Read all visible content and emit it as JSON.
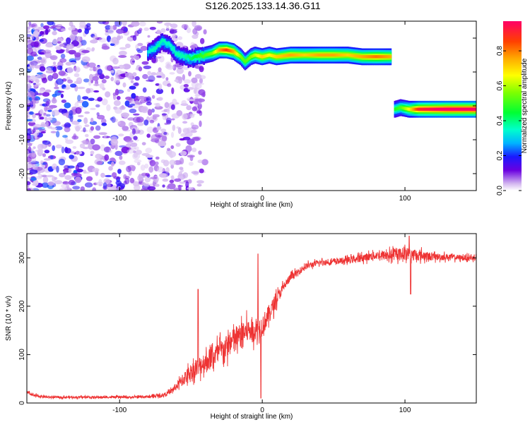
{
  "figure_title": "S126.2025.133.14.36.G11",
  "chart_data": [
    {
      "type": "heatmap",
      "title": "S126.2025.133.14.36.G11",
      "xlabel": "Height of straight line (km)",
      "ylabel": "Frequency (Hz)",
      "xlim": [
        -165,
        150
      ],
      "ylim": [
        -25,
        25
      ],
      "x_ticks": [
        -100,
        0,
        100
      ],
      "y_ticks": [
        -20,
        -10,
        0,
        10,
        20
      ],
      "grid": false,
      "colorbar": {
        "label": "Normalized spectral amplitude",
        "range": [
          0.0,
          0.97
        ],
        "ticks": [
          0.0,
          0.2,
          0.4,
          0.6,
          0.8
        ],
        "colormap": "rainbow"
      },
      "noise_region": {
        "x": [
          -165,
          -40
        ],
        "y": [
          -25,
          25
        ],
        "amplitude": [
          0.03,
          0.25
        ]
      },
      "ridges": [
        {
          "points": [
            {
              "x": -80,
              "y": 16.0,
              "amp": 0.25
            },
            {
              "x": -75,
              "y": 17.0,
              "amp": 0.3
            },
            {
              "x": -70,
              "y": 19.0,
              "amp": 0.3
            },
            {
              "x": -65,
              "y": 18.0,
              "amp": 0.28
            },
            {
              "x": -60,
              "y": 15.5,
              "amp": 0.3
            },
            {
              "x": -55,
              "y": 14.5,
              "amp": 0.3
            },
            {
              "x": -50,
              "y": 14.0,
              "amp": 0.35
            },
            {
              "x": -45,
              "y": 14.5,
              "amp": 0.4
            },
            {
              "x": -40,
              "y": 15.0,
              "amp": 0.45
            },
            {
              "x": -35,
              "y": 15.5,
              "amp": 0.5
            },
            {
              "x": -30,
              "y": 16.5,
              "amp": 0.7
            },
            {
              "x": -25,
              "y": 16.5,
              "amp": 0.8
            },
            {
              "x": -20,
              "y": 16.0,
              "amp": 0.7
            },
            {
              "x": -15,
              "y": 14.5,
              "amp": 0.5
            },
            {
              "x": -12,
              "y": 13.0,
              "amp": 0.45
            },
            {
              "x": -8,
              "y": 14.5,
              "amp": 0.5
            },
            {
              "x": -5,
              "y": 15.0,
              "amp": 0.55
            },
            {
              "x": 0,
              "y": 14.5,
              "amp": 0.65
            },
            {
              "x": 5,
              "y": 15.0,
              "amp": 0.6
            },
            {
              "x": 10,
              "y": 14.5,
              "amp": 0.65
            },
            {
              "x": 20,
              "y": 15.0,
              "amp": 0.7
            },
            {
              "x": 30,
              "y": 15.0,
              "amp": 0.65
            },
            {
              "x": 40,
              "y": 15.0,
              "amp": 0.7
            },
            {
              "x": 50,
              "y": 15.0,
              "amp": 0.7
            },
            {
              "x": 60,
              "y": 15.0,
              "amp": 0.65
            },
            {
              "x": 70,
              "y": 14.5,
              "amp": 0.7
            },
            {
              "x": 80,
              "y": 14.5,
              "amp": 0.75
            },
            {
              "x": 90,
              "y": 14.5,
              "amp": 0.7
            }
          ]
        },
        {
          "points": [
            {
              "x": 93,
              "y": -1.0,
              "amp": 0.4
            },
            {
              "x": 97,
              "y": -0.5,
              "amp": 0.45
            },
            {
              "x": 103,
              "y": -1.0,
              "amp": 0.6
            },
            {
              "x": 110,
              "y": -1.0,
              "amp": 0.85
            },
            {
              "x": 120,
              "y": -1.0,
              "amp": 0.9
            },
            {
              "x": 130,
              "y": -1.0,
              "amp": 0.95
            },
            {
              "x": 140,
              "y": -1.0,
              "amp": 0.95
            },
            {
              "x": 150,
              "y": -1.0,
              "amp": 0.95
            }
          ]
        }
      ]
    },
    {
      "type": "line",
      "xlabel": "Height of straight line (km)",
      "ylabel": "SNR (10 * v/v)",
      "xlim": [
        -165,
        150
      ],
      "ylim": [
        0,
        350
      ],
      "x_ticks": [
        -100,
        0,
        100
      ],
      "y_ticks": [
        0,
        100,
        200,
        300
      ],
      "grid": false,
      "line_color": "#ee3333",
      "trend": {
        "x": [
          -165,
          -160,
          -150,
          -130,
          -110,
          -90,
          -80,
          -70,
          -65,
          -60,
          -55,
          -50,
          -45,
          -40,
          -35,
          -30,
          -25,
          -20,
          -15,
          -10,
          -5,
          0,
          5,
          10,
          15,
          20,
          25,
          30,
          40,
          50,
          60,
          70,
          80,
          90,
          100,
          110,
          120,
          130,
          140,
          150
        ],
        "y": [
          22,
          15,
          12,
          12,
          12,
          12,
          13,
          16,
          22,
          35,
          50,
          65,
          75,
          85,
          95,
          105,
          115,
          130,
          140,
          150,
          150,
          160,
          185,
          215,
          240,
          260,
          270,
          282,
          290,
          292,
          295,
          300,
          305,
          305,
          310,
          305,
          302,
          302,
          300,
          300
        ],
        "spread": [
          6,
          5,
          4,
          4,
          4,
          4,
          5,
          6,
          8,
          15,
          25,
          30,
          35,
          40,
          40,
          45,
          45,
          45,
          45,
          45,
          40,
          40,
          35,
          25,
          18,
          14,
          12,
          12,
          10,
          10,
          12,
          14,
          16,
          20,
          22,
          20,
          14,
          12,
          10,
          10
        ]
      },
      "spikes": [
        {
          "x": -45,
          "y": 235
        },
        {
          "x": -3,
          "y": 308
        },
        {
          "x": -1,
          "y": 10
        },
        {
          "x": 103,
          "y": 345
        },
        {
          "x": 104,
          "y": 225
        }
      ]
    }
  ]
}
